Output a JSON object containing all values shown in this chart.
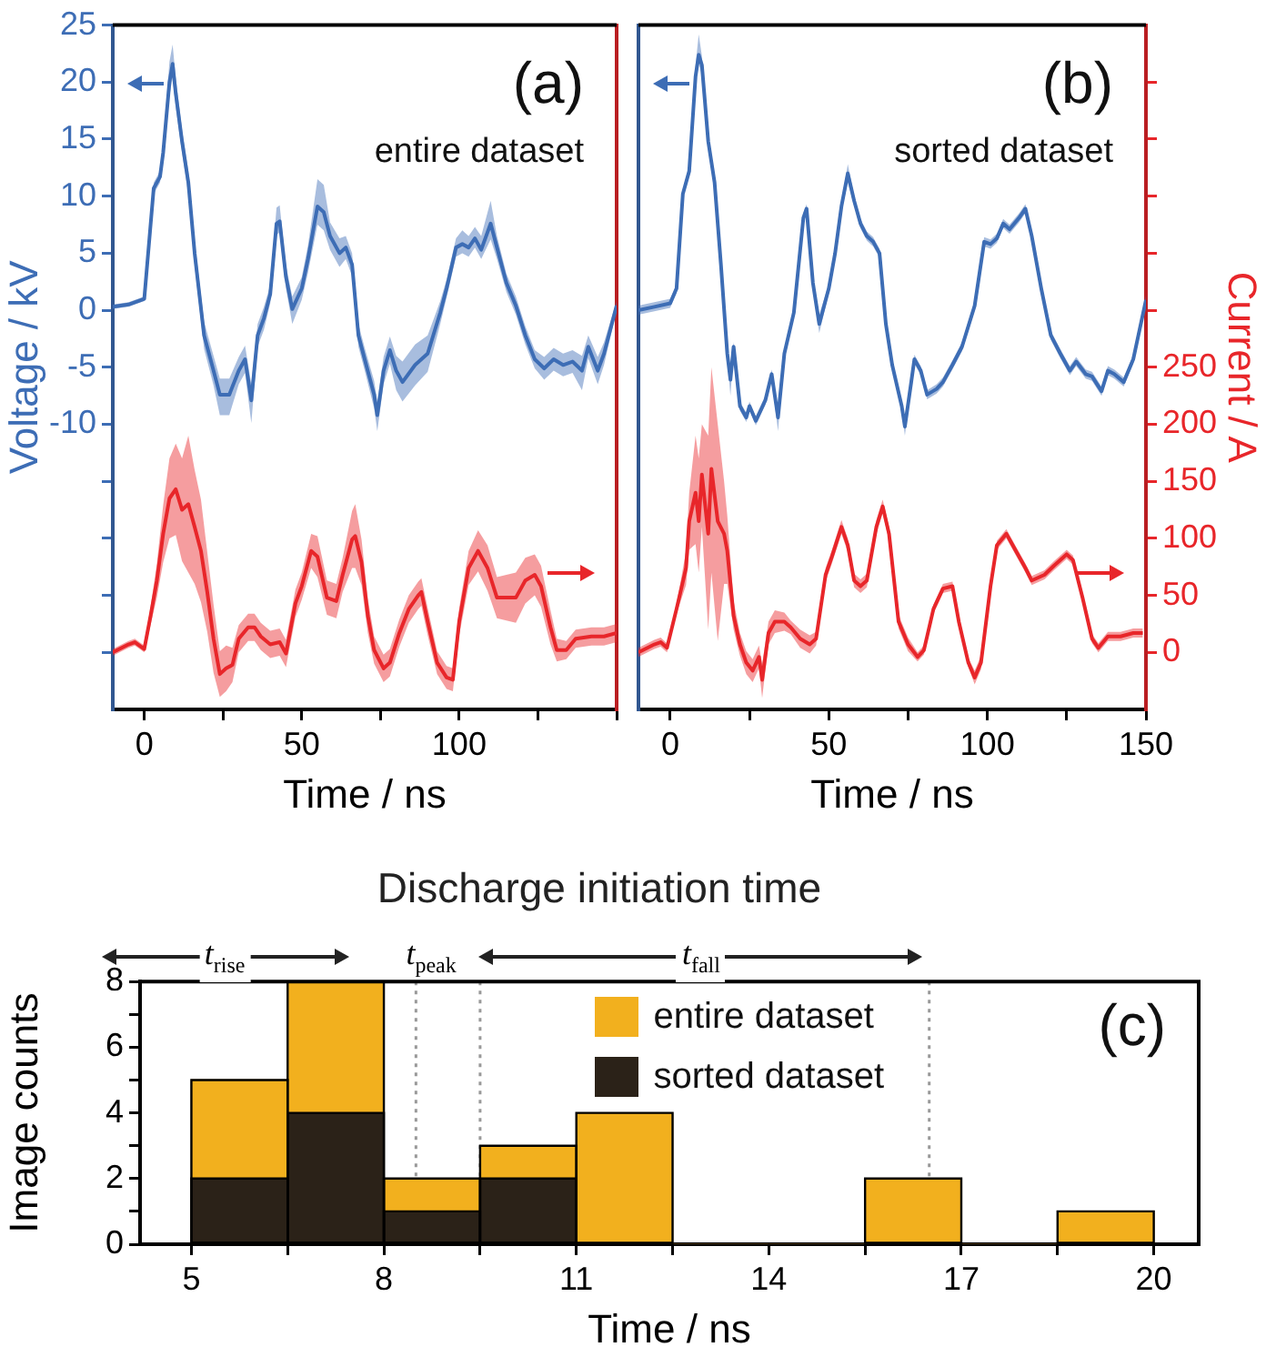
{
  "chart_data": [
    {
      "type": "line",
      "xlabel": "Time / ns",
      "ylabel": "Voltage / kV",
      "annotations": [
        "(a)",
        "entire dataset"
      ],
      "xlim": [
        -10,
        150
      ],
      "xticks": [
        0,
        {
          "value": 25,
          "label": null
        },
        50,
        {
          "value": 75,
          "label": null
        },
        100,
        {
          "value": 125,
          "label": null
        },
        {
          "value": 150,
          "label": null
        }
      ],
      "ylim": [
        -35,
        25
      ],
      "yticks": [
        {
          "value": -30,
          "label": null
        },
        {
          "value": -25,
          "label": null
        },
        {
          "value": -20,
          "label": null
        },
        {
          "value": -15,
          "label": null
        },
        -10,
        -5,
        0,
        5,
        10,
        15,
        20,
        25
      ],
      "y2lim": [
        -50,
        550
      ],
      "tick_labels": "xy",
      "series": [
        {
          "color": "#3d6db5",
          "x": [
            -10,
            -5,
            0,
            3,
            5,
            6,
            8,
            9,
            10,
            12,
            14,
            16,
            19,
            22,
            24,
            27,
            30,
            32,
            34,
            36,
            38,
            40,
            42,
            43,
            45,
            47,
            50,
            52,
            55,
            57,
            59,
            62,
            64,
            66,
            68,
            70,
            73,
            74,
            76,
            78,
            80,
            82,
            86,
            90,
            94,
            96,
            99,
            101,
            103,
            105,
            107,
            110,
            112,
            115,
            118,
            121,
            124,
            127,
            130,
            133,
            136,
            139,
            141,
            144,
            146,
            150
          ],
          "values": [
            0.3,
            0.5,
            1.0,
            10.7,
            11.7,
            13.8,
            20,
            21.6,
            19,
            14.8,
            11.2,
            5,
            -2.2,
            -5.3,
            -7.4,
            -7.4,
            -5.3,
            -4.3,
            -7.9,
            -2.2,
            -0.7,
            1.4,
            7.6,
            7.8,
            2.9,
            0.1,
            1.9,
            4.5,
            9.1,
            8.6,
            6.5,
            5,
            5.5,
            4,
            -2.2,
            -4.3,
            -7.4,
            -9.2,
            -5.3,
            -3.5,
            -5.3,
            -6.3,
            -4.8,
            -3.8,
            -0.2,
            1.9,
            5.5,
            5.8,
            5.5,
            6.3,
            5.3,
            7.6,
            5.5,
            2.4,
            0.4,
            -2.2,
            -4.3,
            -5.1,
            -4.3,
            -4.8,
            -4.5,
            -5.3,
            -3.2,
            -5.3,
            -3.8,
            0.4
          ],
          "lower": [
            0.1,
            0.3,
            0.8,
            10.2,
            11.2,
            13,
            18.8,
            20.4,
            17.8,
            13.8,
            10.2,
            4,
            -3.4,
            -6.6,
            -9.2,
            -9.2,
            -6.5,
            -5.5,
            -9.9,
            -3.2,
            -1.7,
            0.6,
            6.6,
            6.8,
            1.9,
            -1.2,
            0.9,
            3.3,
            7.5,
            7,
            5.3,
            3.8,
            4.5,
            3,
            -3.2,
            -5.3,
            -8.6,
            -10.6,
            -6.5,
            -4.7,
            -7,
            -8,
            -6.6,
            -5.4,
            -1.2,
            1.1,
            4.7,
            5,
            4.7,
            5.5,
            4.5,
            6.2,
            4.5,
            1.6,
            -0.4,
            -3,
            -5.1,
            -6.1,
            -5.3,
            -5.8,
            -5.5,
            -7,
            -4.2,
            -6.5,
            -4.8,
            0
          ],
          "upper": [
            0.5,
            0.7,
            1.2,
            11.2,
            12.2,
            14.6,
            21.8,
            23.3,
            20.4,
            15.8,
            12.2,
            6,
            -1,
            -4,
            -6,
            -6,
            -4.1,
            -3.1,
            -6.5,
            -1.2,
            0.3,
            2.2,
            9,
            9.2,
            3.9,
            1.2,
            2.9,
            5.7,
            11.5,
            11,
            7.7,
            6.3,
            6.5,
            5,
            -1.2,
            -3.3,
            -6.2,
            -8,
            -4.1,
            -2.3,
            -4,
            -4.5,
            -3,
            -2.2,
            0.8,
            2.7,
            6.3,
            7,
            6.5,
            7.3,
            6.5,
            9.6,
            6.5,
            3.2,
            1.2,
            -1.4,
            -3.5,
            -4.1,
            -3.3,
            -3.8,
            -3.5,
            -4,
            -2.2,
            -4.1,
            -2.8,
            0.8
          ]
        },
        {
          "color": "#e8262a",
          "axis": "y2",
          "x": [
            -10,
            -5,
            -3,
            0,
            2,
            4,
            6,
            8,
            10,
            12,
            14,
            16,
            18,
            20,
            22,
            24,
            26,
            28,
            30,
            33,
            35,
            37,
            40,
            43,
            45,
            48,
            50,
            53,
            55,
            58,
            61,
            63,
            66,
            67,
            69,
            71,
            73,
            76,
            78,
            81,
            84,
            87,
            88,
            90,
            93,
            96,
            98,
            100,
            103,
            106,
            109,
            112,
            115,
            118,
            121,
            124,
            126,
            129,
            131,
            134,
            137,
            142,
            146,
            150
          ],
          "values": [
            0,
            7,
            9,
            3,
            32,
            63,
            104,
            135,
            143,
            125,
            130,
            110,
            89,
            53,
            12,
            -19,
            -14,
            -11,
            12,
            22,
            22,
            14,
            7,
            9,
            -1,
            43,
            58,
            89,
            84,
            48,
            45,
            68,
            99,
            102,
            79,
            32,
            2,
            -14,
            -9,
            17,
            38,
            50,
            53,
            27,
            -9,
            -22,
            -24,
            27,
            74,
            89,
            74,
            48,
            48,
            48,
            63,
            68,
            58,
            22,
            2,
            2,
            12,
            14,
            14,
            17
          ],
          "lower": [
            -3,
            4,
            6,
            0,
            24,
            48,
            79,
            100,
            103,
            80,
            70,
            60,
            44,
            18,
            -18,
            -39,
            -34,
            -26,
            0,
            10,
            10,
            2,
            -5,
            -3,
            -13,
            31,
            46,
            74,
            66,
            33,
            30,
            53,
            74,
            74,
            59,
            17,
            -10,
            -26,
            -21,
            5,
            26,
            38,
            41,
            15,
            -19,
            -32,
            -34,
            15,
            59,
            71,
            54,
            30,
            28,
            26,
            43,
            50,
            40,
            7,
            -8,
            -6,
            4,
            6,
            6,
            9
          ],
          "upper": [
            3,
            10,
            12,
            6,
            40,
            78,
            129,
            170,
            183,
            170,
            190,
            160,
            134,
            88,
            42,
            1,
            6,
            4,
            24,
            34,
            34,
            26,
            19,
            21,
            11,
            55,
            70,
            104,
            102,
            63,
            60,
            83,
            124,
            130,
            99,
            47,
            14,
            -2,
            3,
            29,
            50,
            62,
            65,
            39,
            1,
            -12,
            -14,
            39,
            89,
            107,
            94,
            66,
            68,
            70,
            83,
            86,
            76,
            37,
            12,
            10,
            20,
            22,
            22,
            25
          ]
        }
      ]
    },
    {
      "type": "line",
      "xlabel": "Time / ns",
      "y2label": "Current / A",
      "annotations": [
        "(b)",
        "sorted dataset"
      ],
      "xlim": [
        -10,
        150
      ],
      "xticks": [
        0,
        {
          "value": 25,
          "label": null
        },
        50,
        {
          "value": 75,
          "label": null
        },
        100,
        {
          "value": 125,
          "label": null
        },
        150
      ],
      "ylim": [
        -35,
        25
      ],
      "tick_labels": "xy2",
      "y2lim": [
        -50,
        550
      ],
      "y2ticks": [
        0,
        50,
        100,
        150,
        200,
        250,
        {
          "value": 300,
          "label": null
        },
        {
          "value": 350,
          "label": null
        },
        {
          "value": 400,
          "label": null
        },
        {
          "value": 450,
          "label": null
        },
        {
          "value": 500,
          "label": null
        }
      ],
      "series": [
        {
          "color": "#3d6db5",
          "x": [
            -10,
            -5,
            0,
            2,
            4,
            6,
            8,
            9,
            10,
            12,
            14,
            16,
            18,
            19,
            20,
            22,
            24,
            25,
            27,
            30,
            32,
            34,
            36,
            39,
            42,
            43,
            45,
            47,
            50,
            52,
            54,
            56,
            58,
            60,
            62,
            64,
            66,
            68,
            70,
            73,
            74,
            76,
            77,
            79,
            81,
            84,
            86,
            89,
            92,
            96,
            99,
            101,
            103,
            105,
            107,
            110,
            112,
            114,
            117,
            120,
            123,
            126,
            128,
            131,
            133,
            136,
            138,
            140,
            143,
            146,
            150
          ],
          "values": [
            0,
            0.3,
            0.6,
            1.9,
            10.2,
            12.2,
            20.5,
            22.4,
            21.5,
            14.8,
            11.2,
            4,
            -3.8,
            -6.1,
            -3.2,
            -8.4,
            -9.4,
            -8.4,
            -9.7,
            -7.9,
            -5.6,
            -9.4,
            -3.8,
            -0.2,
            8.1,
            8.9,
            2.4,
            -1.2,
            1.9,
            5,
            9.1,
            12,
            9.6,
            7.6,
            6.5,
            6,
            5,
            -1.2,
            -4.8,
            -8.4,
            -10.2,
            -6.3,
            -4.3,
            -5.3,
            -7.4,
            -6.9,
            -6.3,
            -4.8,
            -3.2,
            0.4,
            6,
            5.8,
            6.3,
            7.6,
            7.1,
            8.1,
            8.9,
            6.5,
            1.9,
            -2.2,
            -3.8,
            -5.3,
            -4.5,
            -5.6,
            -5.8,
            -7.1,
            -5.3,
            -5.6,
            -6.3,
            -4.3,
            0.9
          ],
          "lower": [
            -0.4,
            -0.1,
            0.2,
            1.5,
            9.8,
            11.8,
            19.8,
            21.6,
            20.7,
            14.4,
            10.8,
            3.6,
            -4.2,
            -7.5,
            -3.6,
            -8.8,
            -9.8,
            -8.8,
            -10.1,
            -8.3,
            -6,
            -10.6,
            -4.2,
            -0.6,
            7.7,
            8.5,
            2,
            -2,
            1.5,
            4.6,
            8.7,
            11.2,
            9.2,
            7.2,
            6.1,
            5.6,
            4.6,
            -1.6,
            -5.2,
            -8.8,
            -11,
            -6.7,
            -4.7,
            -5.7,
            -7.8,
            -7.3,
            -6.7,
            -5.2,
            -3.6,
            0,
            5.6,
            5.4,
            5.9,
            7.2,
            6.7,
            7.7,
            8.5,
            6.1,
            1.5,
            -2.6,
            -4.2,
            -5.7,
            -4.9,
            -6,
            -6.2,
            -7.5,
            -5.7,
            -6,
            -6.7,
            -4.7,
            0.5
          ],
          "upper": [
            0.4,
            0.7,
            1,
            2.3,
            10.6,
            12.6,
            21.5,
            24.2,
            22.3,
            15.2,
            11.6,
            4.4,
            -3.4,
            -5.3,
            -2.8,
            -8,
            -9,
            -8,
            -9.3,
            -7.5,
            -5.2,
            -8.6,
            -3.4,
            0.2,
            8.5,
            9.3,
            2.8,
            -0.4,
            2.3,
            5.4,
            9.5,
            12.8,
            10,
            8,
            6.9,
            6.4,
            5.4,
            -0.8,
            -4.4,
            -8,
            -9.6,
            -5.9,
            -3.9,
            -4.9,
            -7,
            -6.5,
            -5.9,
            -4.4,
            -2.8,
            0.8,
            6.4,
            6.2,
            6.7,
            8,
            7.5,
            8.5,
            9.3,
            6.9,
            2.3,
            -1.8,
            -3.4,
            -4.9,
            -4.1,
            -5.2,
            -5.4,
            -6.7,
            -4.9,
            -5.2,
            -5.9,
            -3.9,
            1.3
          ]
        },
        {
          "color": "#e8262a",
          "axis": "y2",
          "x": [
            -10,
            -5,
            -3,
            -1,
            2,
            5,
            6,
            8,
            9,
            10,
            12,
            13,
            15,
            17,
            18,
            20,
            22,
            24,
            26,
            28,
            29,
            31,
            33,
            36,
            38,
            41,
            44,
            46,
            49,
            51,
            54,
            56,
            58,
            60,
            62,
            65,
            67,
            69,
            72,
            75,
            78,
            80,
            83,
            86,
            89,
            91,
            94,
            96,
            98,
            101,
            103,
            106,
            109,
            112,
            114,
            118,
            121,
            125,
            127,
            130,
            133,
            135,
            138,
            142,
            146,
            149
          ],
          "values": [
            0,
            7,
            9,
            4,
            38,
            74,
            115,
            140,
            115,
            156,
            104,
            161,
            115,
            104,
            89,
            32,
            7,
            -9,
            -16,
            -4,
            -24,
            17,
            27,
            27,
            22,
            12,
            7,
            12,
            68,
            84,
            110,
            94,
            63,
            58,
            63,
            110,
            128,
            104,
            27,
            7,
            -4,
            2,
            38,
            56,
            58,
            27,
            -9,
            -22,
            -9,
            58,
            94,
            104,
            89,
            74,
            63,
            68,
            76,
            86,
            81,
            48,
            12,
            4,
            14,
            14,
            17,
            17
          ],
          "lower": [
            -4,
            3,
            5,
            0,
            34,
            59,
            90,
            95,
            70,
            110,
            20,
            70,
            10,
            60,
            60,
            20,
            -3,
            -19,
            -26,
            -14,
            -40,
            7,
            17,
            19,
            16,
            4,
            -1,
            6,
            62,
            78,
            104,
            88,
            57,
            52,
            57,
            104,
            122,
            98,
            21,
            1,
            -8,
            -2,
            34,
            52,
            54,
            23,
            -13,
            -28,
            -15,
            54,
            90,
            100,
            85,
            70,
            59,
            64,
            72,
            82,
            77,
            44,
            8,
            0,
            10,
            10,
            13,
            13
          ],
          "upper": [
            4,
            11,
            13,
            8,
            42,
            89,
            140,
            190,
            170,
            200,
            190,
            250,
            200,
            150,
            120,
            45,
            17,
            1,
            -6,
            6,
            -10,
            27,
            37,
            35,
            28,
            20,
            15,
            18,
            74,
            90,
            116,
            100,
            69,
            64,
            69,
            116,
            134,
            110,
            33,
            13,
            0,
            6,
            42,
            60,
            62,
            31,
            -5,
            -16,
            -3,
            62,
            98,
            108,
            93,
            78,
            67,
            72,
            80,
            90,
            85,
            52,
            16,
            8,
            18,
            18,
            21,
            21
          ]
        }
      ]
    },
    {
      "type": "histogram",
      "title": "Discharge initiation time",
      "xlabel": "Time / ns",
      "ylabel": "Image counts",
      "annotations": [
        "(c)",
        "t$_{rise}$",
        "t$_{peak}$",
        "t$_{fall}$"
      ],
      "bins": [
        5,
        6.5,
        8,
        9.5,
        11,
        12.5,
        14,
        15.5,
        17,
        18.5,
        20
      ],
      "xlim": [
        4.2,
        20.7
      ],
      "xticks": [
        5,
        {
          "value": 6.5,
          "label": null
        },
        8,
        {
          "value": 9.5,
          "label": null
        },
        11,
        {
          "value": 12.5,
          "label": null
        },
        14,
        {
          "value": 15.5,
          "label": null
        },
        17,
        {
          "value": 18.5,
          "label": null
        },
        20
      ],
      "ylim": [
        0,
        8
      ],
      "yticks": [
        0,
        {
          "value": 1,
          "label": null
        },
        2,
        {
          "value": 3,
          "label": null
        },
        4,
        {
          "value": 5,
          "label": null
        },
        6,
        {
          "value": 7,
          "label": null
        },
        8
      ],
      "ref_lines": [
        {
          "axis": "x",
          "value": 8.5,
          "color": "#999999",
          "line_style": "dotted"
        },
        {
          "axis": "x",
          "value": 9.5,
          "color": "#999999",
          "line_style": "dotted"
        },
        {
          "axis": "x",
          "value": 16.5,
          "color": "#999999",
          "line_style": "dotted"
        }
      ],
      "legend": "top right",
      "series": [
        {
          "name": "entire dataset",
          "color": "#f2b01e",
          "values": [
            5,
            8,
            2,
            3,
            4,
            0,
            0,
            2,
            0,
            1
          ]
        },
        {
          "name": "sorted dataset",
          "color": "#2b2218",
          "values": [
            2,
            4,
            1,
            2,
            0,
            0,
            0,
            0,
            0,
            0
          ]
        }
      ]
    }
  ]
}
